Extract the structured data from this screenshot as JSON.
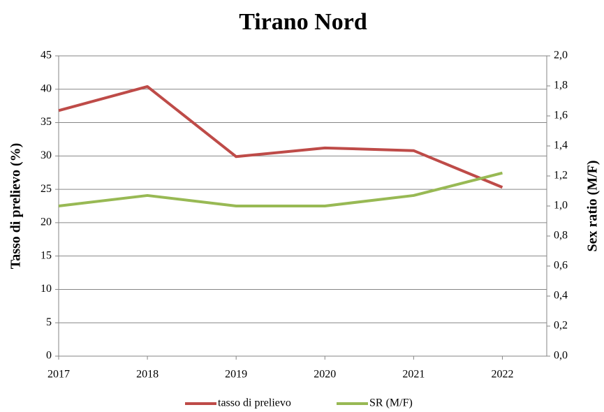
{
  "chart_data": {
    "type": "line",
    "title": "Tirano Nord",
    "x": [
      2017,
      2018,
      2019,
      2020,
      2021,
      2022
    ],
    "xlim": [
      2017,
      2022.5
    ],
    "xticks": [
      2017,
      2018,
      2019,
      2020,
      2021,
      2022
    ],
    "ylabel": "Tasso di prelievo (%)",
    "y2label": "Sex ratio (M/F)",
    "ylim": [
      0,
      45
    ],
    "yticks": [
      0,
      5,
      10,
      15,
      20,
      25,
      30,
      35,
      40,
      45
    ],
    "y2lim": [
      0,
      2.0
    ],
    "y2ticks": [
      {
        "value": 0,
        "label": "0,0"
      },
      {
        "value": 0.2,
        "label": "0,2"
      },
      {
        "value": 0.4,
        "label": "0,4"
      },
      {
        "value": 0.6,
        "label": "0,6"
      },
      {
        "value": 0.8,
        "label": "0,8"
      },
      {
        "value": 1.0,
        "label": "1,0"
      },
      {
        "value": 1.2,
        "label": "1,2"
      },
      {
        "value": 1.4,
        "label": "1,4"
      },
      {
        "value": 1.6,
        "label": "1,6"
      },
      {
        "value": 1.8,
        "label": "1,8"
      },
      {
        "value": 2.0,
        "label": "2,0"
      }
    ],
    "grid": true,
    "legend": "bottom",
    "series": [
      {
        "name": "tasso di prelievo",
        "color": "#be4b48",
        "values": [
          36.8,
          40.4,
          29.9,
          31.2,
          30.8,
          25.3
        ]
      },
      {
        "name": "SR (M/F)",
        "color": "#98b954",
        "axis": "y2",
        "values": [
          1.0,
          1.07,
          1.0,
          1.0,
          1.07,
          1.22
        ]
      }
    ]
  }
}
